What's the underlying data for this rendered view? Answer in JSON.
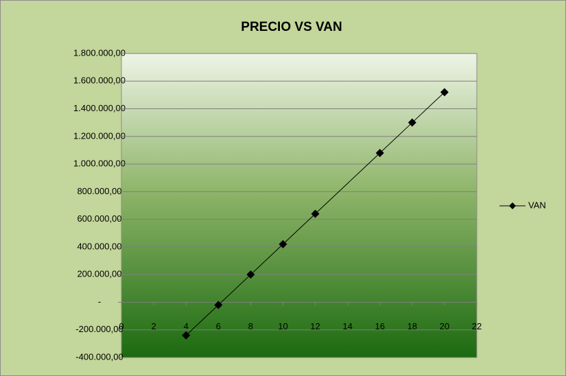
{
  "chart_data": {
    "type": "line",
    "title": "PRECIO VS VAN",
    "x": [
      4,
      6,
      8,
      10,
      12,
      16,
      18,
      20
    ],
    "series": [
      {
        "name": "VAN",
        "color": "#000000",
        "values": [
          -240000,
          -20000,
          200000,
          420000,
          640000,
          1080000,
          1300000,
          1520000
        ]
      }
    ],
    "xlim": [
      0,
      22
    ],
    "xticks": [
      0,
      2,
      4,
      6,
      8,
      10,
      12,
      14,
      16,
      18,
      20,
      22
    ],
    "ylim": [
      -400000,
      1800000
    ],
    "yticks": [
      {
        "value": -400000,
        "label": "-400.000,00"
      },
      {
        "value": -200000,
        "label": "-200.000,00"
      },
      {
        "value": 0,
        "label": "-"
      },
      {
        "value": 200000,
        "label": "200.000,00"
      },
      {
        "value": 400000,
        "label": "400.000,00"
      },
      {
        "value": 600000,
        "label": "600.000,00"
      },
      {
        "value": 800000,
        "label": "800.000,00"
      },
      {
        "value": 1000000,
        "label": "1.000.000,00"
      },
      {
        "value": 1200000,
        "label": "1.200.000,00"
      },
      {
        "value": 1400000,
        "label": "1.400.000,00"
      },
      {
        "value": 1600000,
        "label": "1.600.000,00"
      },
      {
        "value": 1800000,
        "label": "1.800.000,00"
      }
    ],
    "grid": true,
    "legend": "right"
  }
}
